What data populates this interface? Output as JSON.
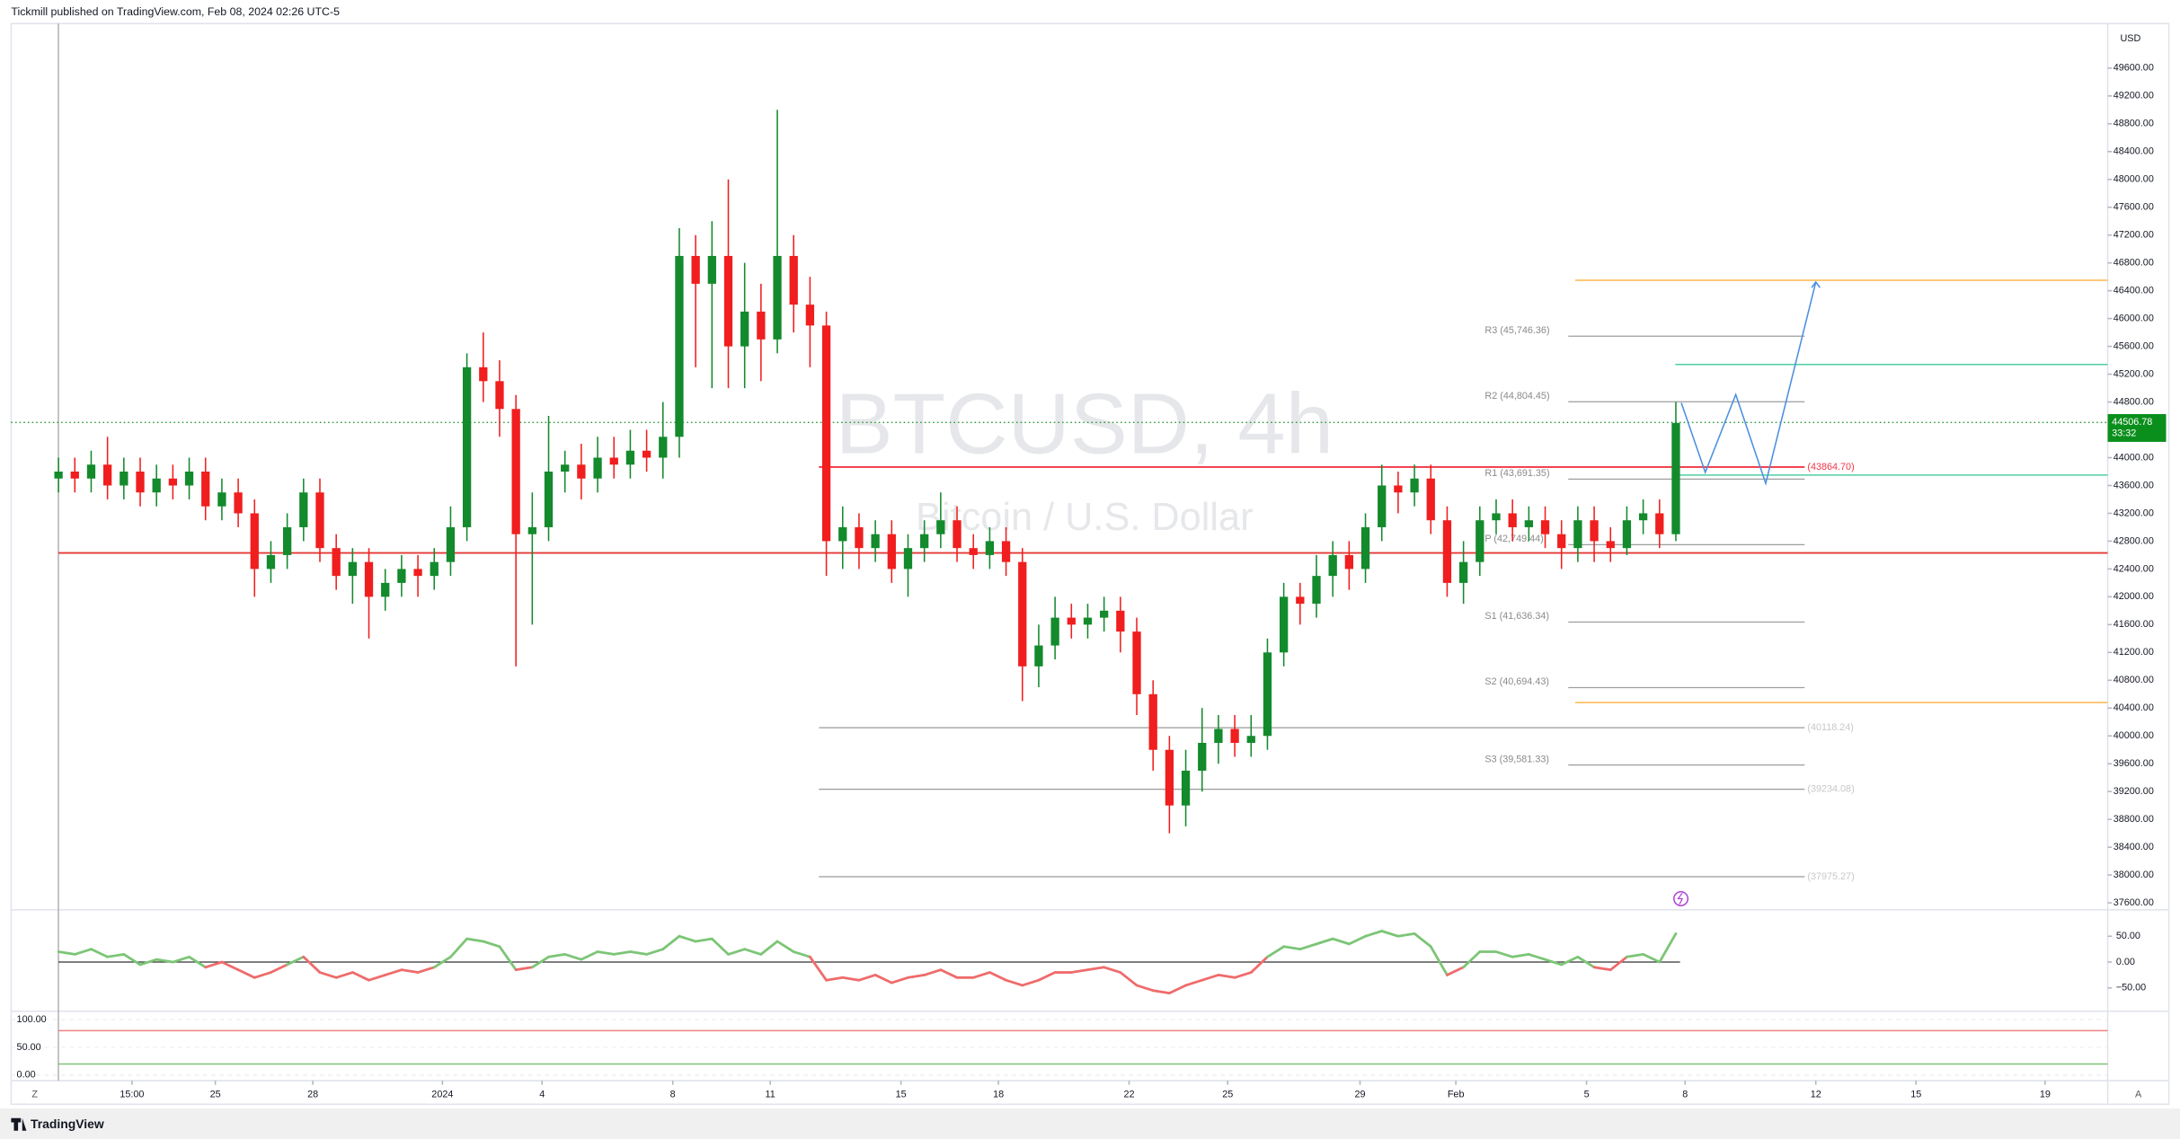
{
  "header": {
    "publisher_line": "Tickmill published on TradingView.com, Feb 08, 2024 02:26 UTC-5"
  },
  "footer": {
    "brand": "TradingView",
    "left_button": "Z",
    "right_button": "A"
  },
  "chart_data": {
    "type": "candlestick",
    "title": "BTCUSD, 4h",
    "subtitle": "Bitcoin / U.S. Dollar",
    "currency": "USD",
    "up_color": "#138a2c",
    "down_color": "#f01e1e",
    "x": [
      0,
      3,
      6,
      9,
      12,
      15,
      18,
      21,
      24,
      27,
      30,
      33,
      36,
      39,
      42,
      45,
      48,
      51,
      54,
      57,
      60,
      63,
      66,
      69,
      72,
      75,
      78,
      81,
      84,
      87,
      90,
      93,
      96,
      99,
      102,
      105,
      108,
      111,
      114,
      117,
      120,
      123,
      126,
      129,
      132,
      135,
      138,
      141,
      144,
      147,
      150,
      153,
      156,
      159,
      162,
      165,
      168,
      171,
      174,
      177,
      180,
      183,
      186,
      189,
      192,
      195,
      198,
      201,
      204,
      207,
      210,
      213,
      216,
      219,
      222,
      225,
      228,
      231,
      234,
      237,
      240,
      243,
      246,
      249,
      252,
      255,
      258,
      261,
      264,
      267,
      270,
      273,
      276,
      279,
      282,
      285,
      288,
      291,
      294,
      297
    ],
    "open": [
      43700,
      43800,
      43700,
      43900,
      43600,
      43800,
      43500,
      43700,
      43600,
      43800,
      43300,
      43500,
      43200,
      42400,
      42600,
      43000,
      43500,
      42700,
      42300,
      42500,
      42000,
      42200,
      42400,
      42300,
      42500,
      43000,
      45300,
      45100,
      44700,
      42900,
      43000,
      43800,
      43900,
      43700,
      44000,
      43900,
      44100,
      44000,
      44300,
      46900,
      46500,
      46900,
      45600,
      46100,
      45700,
      46900,
      46200,
      45900,
      42800,
      43000,
      42700,
      42900,
      42400,
      42700,
      42900,
      43100,
      42700,
      42600,
      42800,
      42500,
      41000,
      41300,
      41700,
      41600,
      41700,
      41800,
      41500,
      40600,
      39800,
      39000,
      39500,
      39900,
      40100,
      39900,
      40000,
      41200,
      42000,
      41900,
      42300,
      42600,
      42400,
      43000,
      43600,
      43500,
      43700,
      43100,
      42200,
      42500,
      43100,
      43200,
      43000,
      43100,
      42900,
      42700,
      43100,
      42800,
      42700,
      43100,
      43200,
      42900
    ],
    "high": [
      44000,
      44000,
      44100,
      44300,
      44000,
      44000,
      43900,
      43900,
      44000,
      44000,
      43700,
      43700,
      43400,
      42800,
      43200,
      43700,
      43700,
      42900,
      42700,
      42700,
      42400,
      42600,
      42600,
      42700,
      43300,
      45500,
      45800,
      45400,
      44900,
      43500,
      44600,
      44100,
      44200,
      44300,
      44300,
      44400,
      44400,
      44800,
      47300,
      47200,
      47400,
      48000,
      46800,
      46500,
      49000,
      47200,
      46600,
      46100,
      43300,
      43200,
      43100,
      43100,
      42900,
      43100,
      43500,
      43300,
      42900,
      43000,
      43000,
      42700,
      41600,
      42000,
      41900,
      41900,
      42000,
      42000,
      41700,
      40800,
      40000,
      39800,
      40400,
      40300,
      40300,
      40300,
      41400,
      42200,
      42200,
      42600,
      42800,
      42800,
      43200,
      43900,
      43800,
      43900,
      43900,
      43300,
      42800,
      43300,
      43400,
      43400,
      43300,
      43300,
      43100,
      43300,
      43300,
      43000,
      43300,
      43400,
      43400,
      44800
    ],
    "low": [
      43500,
      43500,
      43500,
      43400,
      43400,
      43300,
      43300,
      43400,
      43400,
      43100,
      43100,
      43000,
      42000,
      42200,
      42400,
      42800,
      42500,
      42100,
      41900,
      41400,
      41800,
      42000,
      42000,
      42100,
      42300,
      42800,
      44800,
      44300,
      41000,
      41600,
      42800,
      43500,
      43400,
      43500,
      43700,
      43700,
      43800,
      43700,
      44000,
      45300,
      45000,
      45000,
      45000,
      45100,
      45500,
      45800,
      45300,
      42300,
      42400,
      42400,
      42500,
      42200,
      42000,
      42500,
      42700,
      42500,
      42400,
      42400,
      42300,
      40500,
      40700,
      41100,
      41400,
      41400,
      41500,
      41200,
      40300,
      39500,
      38600,
      38700,
      39200,
      39600,
      39700,
      39700,
      39800,
      41000,
      41600,
      41700,
      42000,
      42100,
      42200,
      42800,
      43200,
      43300,
      42900,
      42000,
      41900,
      42300,
      42900,
      42800,
      42800,
      42700,
      42400,
      42500,
      42500,
      42500,
      42600,
      42900,
      42700,
      42800
    ],
    "close": [
      43800,
      43700,
      43900,
      43600,
      43800,
      43500,
      43700,
      43600,
      43800,
      43300,
      43500,
      43200,
      42400,
      42600,
      43000,
      43500,
      42700,
      42300,
      42500,
      42000,
      42200,
      42400,
      42300,
      42500,
      43000,
      45300,
      45100,
      44700,
      42900,
      43000,
      43800,
      43900,
      43700,
      44000,
      43900,
      44100,
      44000,
      44300,
      46900,
      46500,
      46900,
      45600,
      46100,
      45700,
      46900,
      46200,
      45900,
      42800,
      43000,
      42700,
      42900,
      42400,
      42700,
      42900,
      43100,
      42700,
      42600,
      42800,
      42500,
      41000,
      41300,
      41700,
      41600,
      41700,
      41800,
      41500,
      40600,
      39800,
      39000,
      39500,
      39900,
      40100,
      39900,
      40000,
      41200,
      42000,
      41900,
      42300,
      42600,
      42400,
      43000,
      43600,
      43500,
      43700,
      43100,
      42200,
      42500,
      43100,
      43200,
      43000,
      43100,
      42900,
      42700,
      43100,
      42800,
      42700,
      43100,
      43200,
      42900,
      44500
    ],
    "xlim": [
      -8.7,
      376.3
    ],
    "xticks": [
      {
        "value": 13.5,
        "label": "15:00"
      },
      {
        "value": 28.8,
        "label": "25"
      },
      {
        "value": 46.7,
        "label": "28"
      },
      {
        "value": 70.5,
        "label": "2024"
      },
      {
        "value": 88.8,
        "label": "4"
      },
      {
        "value": 112.8,
        "label": "8"
      },
      {
        "value": 130.7,
        "label": "11"
      },
      {
        "value": 154.7,
        "label": "15"
      },
      {
        "value": 172.6,
        "label": "18"
      },
      {
        "value": 196.6,
        "label": "22"
      },
      {
        "value": 214.7,
        "label": "25"
      },
      {
        "value": 239,
        "label": "29"
      },
      {
        "value": 256.6,
        "label": "Feb"
      },
      {
        "value": 280.6,
        "label": "5"
      },
      {
        "value": 298.7,
        "label": "8"
      },
      {
        "value": 322.7,
        "label": "12"
      },
      {
        "value": 341.1,
        "label": "15"
      },
      {
        "value": 364.8,
        "label": "19"
      }
    ],
    "ylim": [
      37500,
      50240
    ],
    "yticks": [
      {
        "value": 37600,
        "label": "37600.00"
      },
      {
        "value": 38000,
        "label": "38000.00"
      },
      {
        "value": 38400,
        "label": "38400.00"
      },
      {
        "value": 38800,
        "label": "38800.00"
      },
      {
        "value": 39200,
        "label": "39200.00"
      },
      {
        "value": 39600,
        "label": "39600.00"
      },
      {
        "value": 40000,
        "label": "40000.00"
      },
      {
        "value": 40400,
        "label": "40400.00"
      },
      {
        "value": 40800,
        "label": "40800.00"
      },
      {
        "value": 41200,
        "label": "41200.00"
      },
      {
        "value": 41600,
        "label": "41600.00"
      },
      {
        "value": 42000,
        "label": "42000.00"
      },
      {
        "value": 42400,
        "label": "42400.00"
      },
      {
        "value": 42800,
        "label": "42800.00"
      },
      {
        "value": 43200,
        "label": "43200.00"
      },
      {
        "value": 43600,
        "label": "43600.00"
      },
      {
        "value": 44000,
        "label": "44000.00"
      },
      {
        "value": 44400,
        "label": "44400.00"
      },
      {
        "value": 44800,
        "label": "44800.00"
      },
      {
        "value": 45200,
        "label": "45200.00"
      },
      {
        "value": 45600,
        "label": "45600.00"
      },
      {
        "value": 46000,
        "label": "46000.00"
      },
      {
        "value": 46400,
        "label": "46400.00"
      },
      {
        "value": 46800,
        "label": "46800.00"
      },
      {
        "value": 47200,
        "label": "47200.00"
      },
      {
        "value": 47600,
        "label": "47600.00"
      },
      {
        "value": 48000,
        "label": "48000.00"
      },
      {
        "value": 48400,
        "label": "48400.00"
      },
      {
        "value": 48800,
        "label": "48800.00"
      },
      {
        "value": 49200,
        "label": "49200.00"
      },
      {
        "value": 49600,
        "label": "49600.00"
      }
    ],
    "last_price": 44506.78,
    "countdown": "33:32",
    "last_price_color": "#0b8f1c",
    "pivot_color": "#9e9e9e",
    "pivots": [
      {
        "label": "R3 (45,746.36)",
        "value": 45746.36
      },
      {
        "label": "R2 (44,804.45)",
        "value": 44804.45
      },
      {
        "label": "R1 (43,691.35)",
        "value": 43691.35
      },
      {
        "label": "P (42,749.44)",
        "value": 42749.44
      },
      {
        "label": "S1 (41,636.34)",
        "value": 41636.34
      },
      {
        "label": "S2 (40,694.43)",
        "value": 40694.43
      },
      {
        "label": "S3 (39,581.33)",
        "value": 39581.33
      }
    ],
    "levels": [
      {
        "label": "(43864.70)",
        "value": 43864.7,
        "color": "#f23645"
      },
      {
        "label": "(40118.24)",
        "value": 40118.24,
        "color": "#c8c8c8"
      },
      {
        "label": "(39234.08)",
        "value": 39234.08,
        "color": "#c8c8c8"
      },
      {
        "label": "(37975.27)",
        "value": 37975.27,
        "color": "#c8c8c8"
      }
    ],
    "hlines": [
      {
        "value": 42630,
        "color": "#e53935"
      },
      {
        "value": 46550,
        "color": "#ffb74d"
      },
      {
        "value": 40480,
        "color": "#ffb74d"
      },
      {
        "value": 45340,
        "color": "#4dd0a0"
      },
      {
        "value": 43750,
        "color": "#4dd0a0"
      }
    ],
    "projection": {
      "x": [
        298,
        302.4,
        308,
        313.5,
        322.7
      ],
      "values": [
        44787,
        43789,
        44907,
        43630,
        46525
      ],
      "color": "#4a8fe0"
    },
    "rsi": {
      "values": [
        20,
        15,
        25,
        10,
        15,
        -5,
        5,
        0,
        10,
        -10,
        0,
        -15,
        -30,
        -20,
        -5,
        10,
        -20,
        -30,
        -20,
        -35,
        -25,
        -15,
        -20,
        -10,
        10,
        45,
        40,
        30,
        -15,
        -10,
        10,
        15,
        5,
        20,
        15,
        20,
        15,
        25,
        50,
        40,
        45,
        15,
        25,
        15,
        40,
        20,
        10,
        -35,
        -30,
        -35,
        -25,
        -40,
        -30,
        -25,
        -15,
        -30,
        -30,
        -20,
        -35,
        -45,
        -35,
        -20,
        -20,
        -15,
        -10,
        -20,
        -45,
        -55,
        -60,
        -45,
        -35,
        -25,
        -30,
        -20,
        10,
        30,
        25,
        35,
        45,
        35,
        50,
        60,
        50,
        55,
        30,
        -25,
        -10,
        20,
        20,
        10,
        15,
        5,
        -5,
        10,
        -10,
        -15,
        10,
        15,
        0,
        55
      ],
      "ylim": [
        -95,
        93
      ],
      "yticks": [
        {
          "value": 50,
          "label": "50.00"
        },
        {
          "value": 0,
          "label": "0.00"
        },
        {
          "value": -50,
          "label": "−50.00"
        }
      ],
      "up_color": "#7cc576",
      "down_color": "#ef6b6b"
    },
    "stoch": {
      "ylim": [
        -10,
        110
      ],
      "yticks": [
        {
          "value": 100,
          "label": "100.00"
        },
        {
          "value": 50,
          "label": "50.00"
        },
        {
          "value": 0,
          "label": "0.00"
        }
      ],
      "levels": [
        {
          "value": 80,
          "color": "#f08080"
        },
        {
          "value": 20,
          "color": "#7cc576"
        }
      ]
    }
  }
}
